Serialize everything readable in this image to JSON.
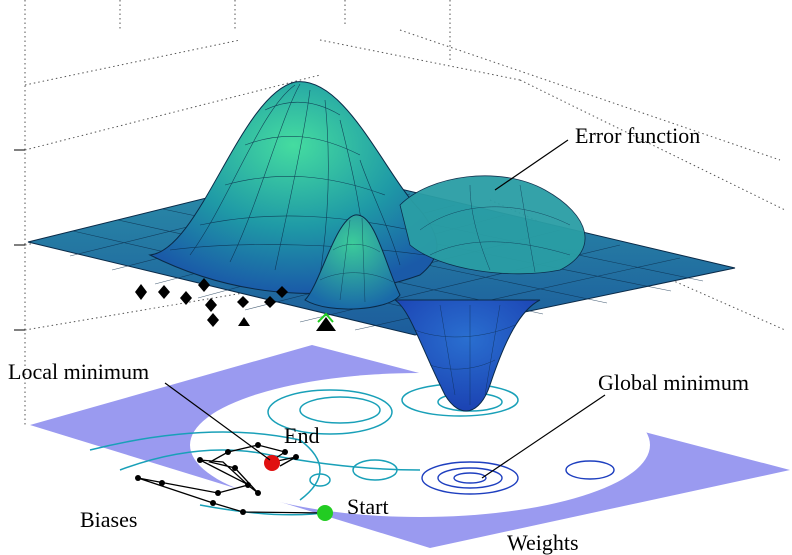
{
  "labels": {
    "error_function": "Error function",
    "local_minimum": "Local minimum",
    "global_minimum": "Global minimum",
    "end": "End",
    "start": "Start",
    "biases": "Biases",
    "weights": "Weights"
  },
  "colors": {
    "surface_high": "#3fd6a0",
    "surface_mid": "#1f8fa8",
    "surface_low": "#1d4fc0",
    "plane": "#9a9af0",
    "contour": "#19a0b8",
    "contour_dark": "#1e3fbf",
    "start_marker": "#22cc22",
    "end_marker": "#e01010",
    "path": "#000000"
  }
}
